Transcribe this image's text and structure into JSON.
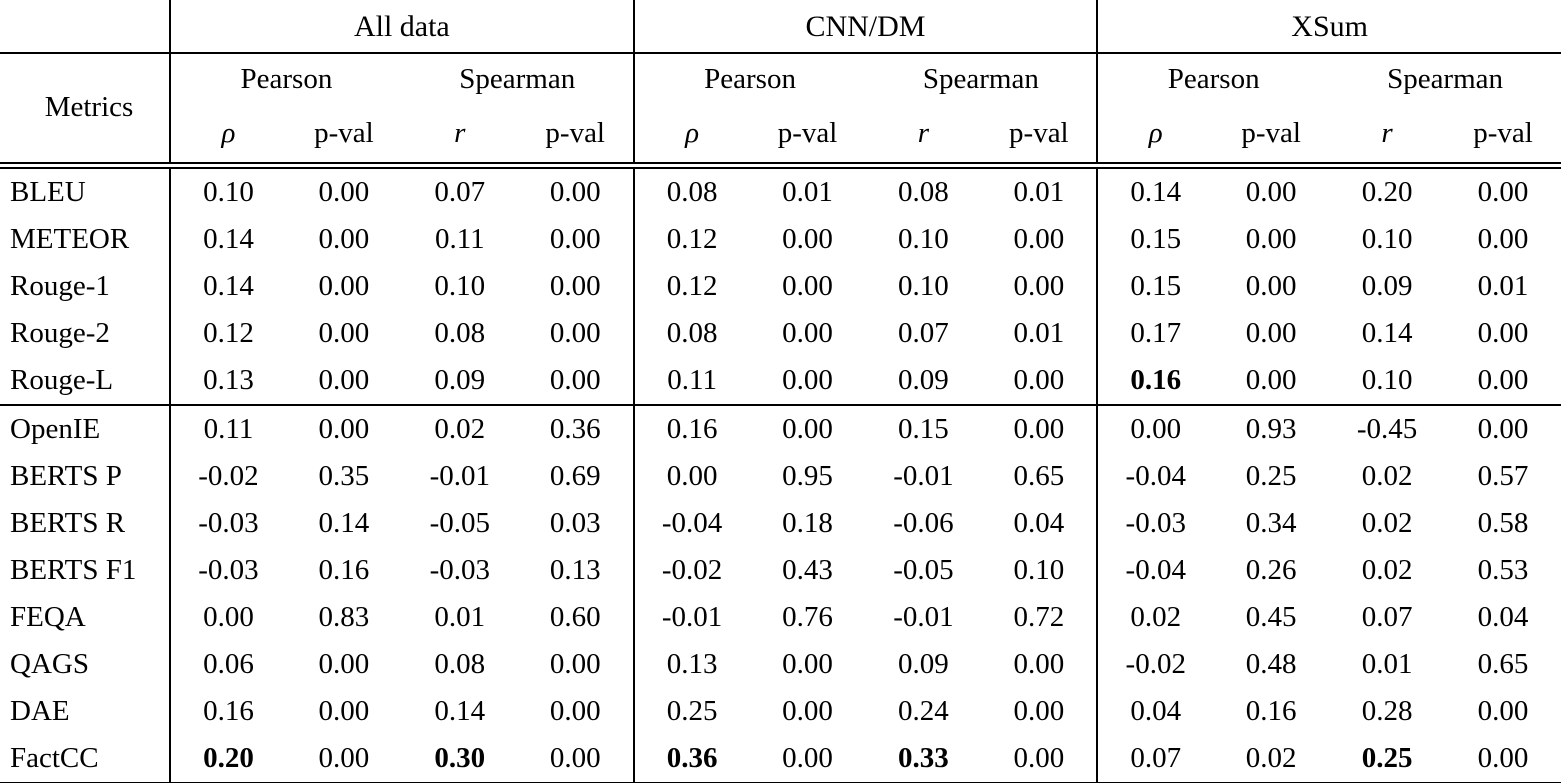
{
  "table": {
    "corner_label": "Metrics",
    "groups": [
      "All data",
      "CNN/DM",
      "XSum"
    ],
    "subgroups": [
      "Pearson",
      "Spearman"
    ],
    "symbols": {
      "pearson_symbol": "ρ",
      "spearman_symbol": "r",
      "pval_label": "p-val"
    },
    "sections": [
      {
        "rows": [
          {
            "metric": "BLEU",
            "values": [
              "0.10",
              "0.00",
              "0.07",
              "0.00",
              "0.08",
              "0.01",
              "0.08",
              "0.01",
              "0.14",
              "0.00",
              "0.20",
              "0.00"
            ],
            "bold": []
          },
          {
            "metric": "METEOR",
            "values": [
              "0.14",
              "0.00",
              "0.11",
              "0.00",
              "0.12",
              "0.00",
              "0.10",
              "0.00",
              "0.15",
              "0.00",
              "0.10",
              "0.00"
            ],
            "bold": []
          },
          {
            "metric": "Rouge-1",
            "values": [
              "0.14",
              "0.00",
              "0.10",
              "0.00",
              "0.12",
              "0.00",
              "0.10",
              "0.00",
              "0.15",
              "0.00",
              "0.09",
              "0.01"
            ],
            "bold": []
          },
          {
            "metric": "Rouge-2",
            "values": [
              "0.12",
              "0.00",
              "0.08",
              "0.00",
              "0.08",
              "0.00",
              "0.07",
              "0.01",
              "0.17",
              "0.00",
              "0.14",
              "0.00"
            ],
            "bold": []
          },
          {
            "metric": "Rouge-L",
            "values": [
              "0.13",
              "0.00",
              "0.09",
              "0.00",
              "0.11",
              "0.00",
              "0.09",
              "0.00",
              "0.16",
              "0.00",
              "0.10",
              "0.00"
            ],
            "bold": [
              8
            ]
          }
        ]
      },
      {
        "rows": [
          {
            "metric": "OpenIE",
            "values": [
              "0.11",
              "0.00",
              "0.02",
              "0.36",
              "0.16",
              "0.00",
              "0.15",
              "0.00",
              "0.00",
              "0.93",
              "-0.45",
              "0.00"
            ],
            "bold": []
          },
          {
            "metric": "BERTS P",
            "values": [
              "-0.02",
              "0.35",
              "-0.01",
              "0.69",
              "0.00",
              "0.95",
              "-0.01",
              "0.65",
              "-0.04",
              "0.25",
              "0.02",
              "0.57"
            ],
            "bold": []
          },
          {
            "metric": "BERTS R",
            "values": [
              "-0.03",
              "0.14",
              "-0.05",
              "0.03",
              "-0.04",
              "0.18",
              "-0.06",
              "0.04",
              "-0.03",
              "0.34",
              "0.02",
              "0.58"
            ],
            "bold": []
          },
          {
            "metric": "BERTS F1",
            "values": [
              "-0.03",
              "0.16",
              "-0.03",
              "0.13",
              "-0.02",
              "0.43",
              "-0.05",
              "0.10",
              "-0.04",
              "0.26",
              "0.02",
              "0.53"
            ],
            "bold": []
          },
          {
            "metric": "FEQA",
            "values": [
              "0.00",
              "0.83",
              "0.01",
              "0.60",
              "-0.01",
              "0.76",
              "-0.01",
              "0.72",
              "0.02",
              "0.45",
              "0.07",
              "0.04"
            ],
            "bold": []
          },
          {
            "metric": "QAGS",
            "values": [
              "0.06",
              "0.00",
              "0.08",
              "0.00",
              "0.13",
              "0.00",
              "0.09",
              "0.00",
              "-0.02",
              "0.48",
              "0.01",
              "0.65"
            ],
            "bold": []
          },
          {
            "metric": "DAE",
            "values": [
              "0.16",
              "0.00",
              "0.14",
              "0.00",
              "0.25",
              "0.00",
              "0.24",
              "0.00",
              "0.04",
              "0.16",
              "0.28",
              "0.00"
            ],
            "bold": []
          },
          {
            "metric": "FactCC",
            "values": [
              "0.20",
              "0.00",
              "0.30",
              "0.00",
              "0.36",
              "0.00",
              "0.33",
              "0.00",
              "0.07",
              "0.02",
              "0.25",
              "0.00"
            ],
            "bold": [
              0,
              2,
              4,
              6,
              10
            ]
          }
        ]
      }
    ]
  }
}
